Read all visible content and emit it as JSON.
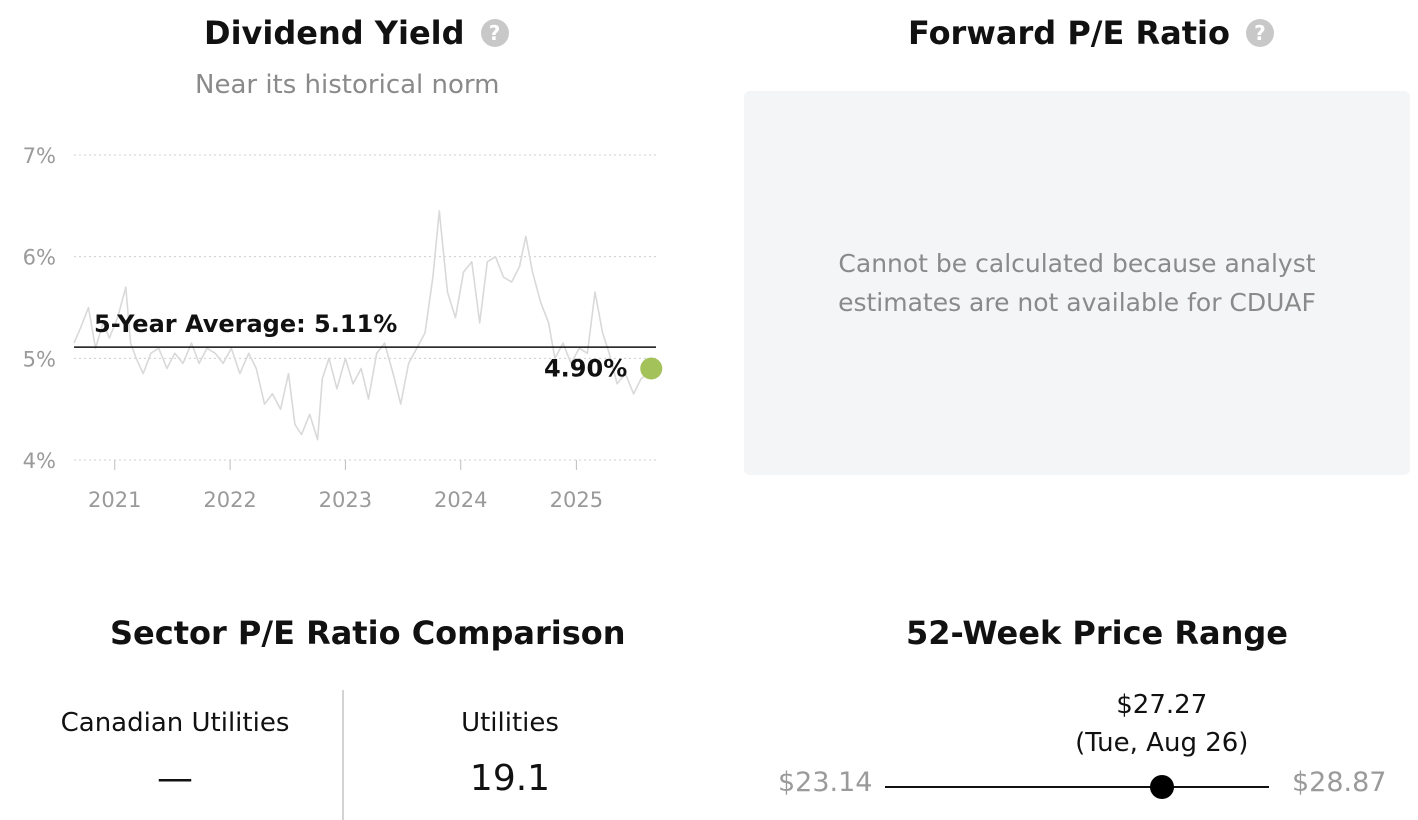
{
  "dividend_yield": {
    "title": "Dividend Yield",
    "help_icon": "?",
    "subtitle": "Near its historical norm",
    "avg_label": "5-Year Average: 5.11%",
    "current_label": "4.90%",
    "current_dot_color": "#a4c25a"
  },
  "chart_data": {
    "type": "line",
    "ylim": [
      4,
      7
    ],
    "yticks": [
      4,
      5,
      6,
      7
    ],
    "ytick_labels": [
      "4%",
      "5%",
      "6%",
      "7%"
    ],
    "xlim": [
      "2020-08-25",
      "2025-09-10"
    ],
    "xticks": [
      "2021-01-01",
      "2022-01-01",
      "2023-01-01",
      "2024-01-01",
      "2025-01-01"
    ],
    "xtick_labels": [
      "2021",
      "2022",
      "2023",
      "2024",
      "2025"
    ],
    "grid": true,
    "average": 5.11,
    "current": {
      "x": "2025-08-26",
      "y": 4.9
    },
    "series": [
      {
        "color": "#d9d9d9",
        "x": [
          "2020-08-25",
          "2020-09-15",
          "2020-10-10",
          "2020-11-01",
          "2020-11-25",
          "2020-12-15",
          "2021-01-10",
          "2021-02-05",
          "2021-02-20",
          "2021-03-10",
          "2021-04-01",
          "2021-04-25",
          "2021-05-20",
          "2021-06-15",
          "2021-07-10",
          "2021-08-05",
          "2021-09-01",
          "2021-09-25",
          "2021-10-20",
          "2021-11-15",
          "2021-12-10",
          "2022-01-05",
          "2022-02-01",
          "2022-03-01",
          "2022-03-25",
          "2022-04-20",
          "2022-05-15",
          "2022-06-10",
          "2022-07-05",
          "2022-07-25",
          "2022-08-15",
          "2022-09-10",
          "2022-10-05",
          "2022-10-20",
          "2022-11-10",
          "2022-12-05",
          "2023-01-01",
          "2023-01-25",
          "2023-02-20",
          "2023-03-15",
          "2023-04-10",
          "2023-05-05",
          "2023-06-01",
          "2023-06-25",
          "2023-07-20",
          "2023-08-15",
          "2023-09-10",
          "2023-10-05",
          "2023-10-25",
          "2023-11-20",
          "2023-12-15",
          "2024-01-10",
          "2024-02-05",
          "2024-03-01",
          "2024-03-25",
          "2024-04-20",
          "2024-05-15",
          "2024-06-10",
          "2024-07-05",
          "2024-07-25",
          "2024-08-15",
          "2024-09-10",
          "2024-10-05",
          "2024-10-25",
          "2024-11-20",
          "2024-12-15",
          "2025-01-10",
          "2025-02-05",
          "2025-03-01",
          "2025-03-25",
          "2025-04-15",
          "2025-05-10",
          "2025-06-05",
          "2025-07-01",
          "2025-07-25",
          "2025-08-15",
          "2025-08-26"
        ],
        "values": [
          5.15,
          5.3,
          5.5,
          5.1,
          5.35,
          5.2,
          5.4,
          5.7,
          5.15,
          5.0,
          4.85,
          5.05,
          5.1,
          4.9,
          5.05,
          4.95,
          5.15,
          4.95,
          5.1,
          5.05,
          4.95,
          5.1,
          4.85,
          5.05,
          4.9,
          4.55,
          4.65,
          4.5,
          4.85,
          4.35,
          4.25,
          4.45,
          4.2,
          4.8,
          5.0,
          4.7,
          5.0,
          4.75,
          4.9,
          4.6,
          5.05,
          5.15,
          4.85,
          4.55,
          4.95,
          5.1,
          5.25,
          5.8,
          6.45,
          5.65,
          5.4,
          5.85,
          5.95,
          5.35,
          5.95,
          6.0,
          5.8,
          5.75,
          5.9,
          6.2,
          5.85,
          5.55,
          5.35,
          5.0,
          5.15,
          4.95,
          5.1,
          5.05,
          5.65,
          5.25,
          5.05,
          4.75,
          4.85,
          4.65,
          4.8,
          4.85,
          4.9
        ]
      }
    ]
  },
  "forward_pe": {
    "title": "Forward P/E Ratio",
    "help_icon": "?",
    "message": "Cannot be calculated because analyst estimates are not available for CDUAF"
  },
  "sector_pe": {
    "title": "Sector P/E Ratio Comparison",
    "columns": [
      {
        "name": "Canadian Utilities",
        "value": "—"
      },
      {
        "name": "Utilities",
        "value": "19.1"
      }
    ]
  },
  "price_range": {
    "title": "52-Week Price Range",
    "low": "$23.14",
    "high": "$28.87",
    "current_price": "$27.27",
    "current_date": "(Tue, Aug 26)",
    "current_value": 27.27,
    "low_value": 23.14,
    "high_value": 28.87
  }
}
